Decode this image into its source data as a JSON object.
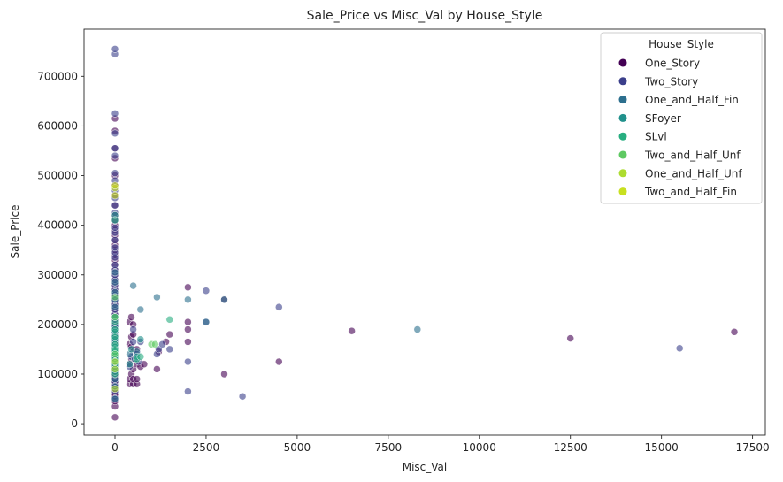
{
  "chart_data": {
    "type": "scatter",
    "title": "Sale_Price vs Misc_Val by House_Style",
    "xlabel": "Misc_Val",
    "ylabel": "Sale_Price",
    "xlim": [
      -850,
      17850
    ],
    "ylim": [
      -23000,
      795000
    ],
    "xticks": [
      0,
      2500,
      5000,
      7500,
      10000,
      12500,
      15000,
      17500
    ],
    "xtick_labels": [
      "0",
      "2500",
      "5000",
      "7500",
      "10000",
      "12500",
      "15000",
      "17500"
    ],
    "yticks": [
      0,
      100000,
      200000,
      300000,
      400000,
      500000,
      600000,
      700000
    ],
    "ytick_labels": [
      "0",
      "100000",
      "200000",
      "300000",
      "400000",
      "500000",
      "600000",
      "700000"
    ],
    "grid": false,
    "legend": {
      "title": "House_Style",
      "position": "top-right",
      "entries": [
        "One_Story",
        "Two_Story",
        "One_and_Half_Fin",
        "SFoyer",
        "SLvl",
        "Two_and_Half_Unf",
        "One_and_Half_Unf",
        "Two_and_Half_Fin"
      ]
    },
    "colors": {
      "One_Story": "#440154",
      "Two_Story": "#3b3f8b",
      "One_and_Half_Fin": "#2c6f8e",
      "SFoyer": "#21918c",
      "SLvl": "#28ae80",
      "Two_and_Half_Unf": "#5ec962",
      "One_and_Half_Unf": "#addc30",
      "Two_and_Half_Fin": "#c8e020"
    },
    "series": [
      {
        "name": "One_Story",
        "x": [
          0,
          0,
          0,
          0,
          0,
          0,
          0,
          0,
          0,
          0,
          0,
          0,
          0,
          0,
          0,
          0,
          0,
          0,
          0,
          0,
          0,
          0,
          0,
          0,
          0,
          0,
          0,
          0,
          0,
          0,
          0,
          0,
          0,
          0,
          0,
          0,
          0,
          0,
          0,
          0,
          0,
          0,
          0,
          0,
          0,
          0,
          0,
          0,
          0,
          0,
          0,
          0,
          0,
          0,
          0,
          0,
          0,
          0,
          0,
          0,
          0,
          0,
          400,
          400,
          400,
          400,
          400,
          450,
          450,
          450,
          450,
          450,
          500,
          500,
          500,
          500,
          500,
          500,
          600,
          600,
          600,
          600,
          700,
          800,
          1150,
          1200,
          1400,
          1500,
          2000,
          2000,
          2000,
          2000,
          3000,
          3000,
          4500,
          6500,
          12500,
          17000
        ],
        "y": [
          13000,
          35000,
          45000,
          55000,
          60000,
          70000,
          75000,
          80000,
          85000,
          90000,
          95000,
          100000,
          105000,
          110000,
          115000,
          120000,
          125000,
          130000,
          135000,
          140000,
          145000,
          150000,
          155000,
          160000,
          165000,
          170000,
          175000,
          180000,
          185000,
          190000,
          195000,
          200000,
          210000,
          220000,
          230000,
          240000,
          250000,
          260000,
          270000,
          280000,
          290000,
          300000,
          310000,
          320000,
          330000,
          340000,
          350000,
          360000,
          370000,
          380000,
          390000,
          400000,
          410000,
          420000,
          440000,
          460000,
          480000,
          500000,
          535000,
          555000,
          590000,
          615000,
          80000,
          90000,
          120000,
          160000,
          205000,
          100000,
          130000,
          155000,
          175000,
          215000,
          80000,
          90000,
          110000,
          145000,
          180000,
          200000,
          80000,
          90000,
          120000,
          150000,
          115000,
          120000,
          110000,
          145000,
          165000,
          180000,
          165000,
          190000,
          205000,
          275000,
          100000,
          250000,
          125000,
          187000,
          172000,
          185000
        ]
      },
      {
        "name": "Two_Story",
        "x": [
          0,
          0,
          0,
          0,
          0,
          0,
          0,
          0,
          0,
          0,
          0,
          0,
          0,
          0,
          0,
          0,
          0,
          0,
          0,
          0,
          0,
          0,
          0,
          0,
          0,
          0,
          0,
          0,
          0,
          0,
          0,
          0,
          0,
          0,
          0,
          0,
          0,
          0,
          0,
          0,
          0,
          0,
          0,
          400,
          450,
          500,
          500,
          600,
          650,
          700,
          1150,
          1200,
          1300,
          1500,
          2000,
          2000,
          2500,
          2500,
          3500,
          4500,
          15500
        ],
        "y": [
          50000,
          65000,
          85000,
          100000,
          120000,
          140000,
          150000,
          160000,
          170000,
          180000,
          190000,
          200000,
          210000,
          220000,
          230000,
          240000,
          250000,
          260000,
          270000,
          280000,
          290000,
          300000,
          310000,
          320000,
          335000,
          345000,
          355000,
          370000,
          385000,
          395000,
          410000,
          425000,
          440000,
          455000,
          470000,
          490000,
          505000,
          540000,
          555000,
          585000,
          625000,
          745000,
          755000,
          115000,
          135000,
          165000,
          190000,
          140000,
          125000,
          165000,
          140000,
          150000,
          160000,
          150000,
          65000,
          125000,
          205000,
          268000,
          55000,
          235000,
          152000
        ]
      },
      {
        "name": "One_and_Half_Fin",
        "x": [
          0,
          0,
          0,
          0,
          0,
          0,
          0,
          0,
          0,
          0,
          0,
          0,
          0,
          0,
          0,
          0,
          0,
          0,
          0,
          400,
          500,
          550,
          600,
          700,
          1150,
          2000,
          2500,
          3000,
          8300
        ],
        "y": [
          50000,
          75000,
          90000,
          105000,
          115000,
          125000,
          135000,
          145000,
          155000,
          165000,
          175000,
          185000,
          195000,
          215000,
          235000,
          250000,
          265000,
          285000,
          305000,
          140000,
          278000,
          130000,
          145000,
          230000,
          255000,
          250000,
          205000,
          250000,
          190000
        ]
      },
      {
        "name": "SFoyer",
        "x": [
          0,
          0,
          0,
          0,
          0,
          0,
          0,
          0,
          0,
          400,
          450,
          600,
          700
        ],
        "y": [
          110000,
          125000,
          135000,
          145000,
          155000,
          170000,
          185000,
          215000,
          420000,
          120000,
          150000,
          135000,
          170000
        ]
      },
      {
        "name": "SLvl",
        "x": [
          0,
          0,
          0,
          0,
          0,
          0,
          0,
          0,
          0,
          0,
          0,
          600,
          700,
          1500
        ],
        "y": [
          100000,
          120000,
          130000,
          140000,
          145000,
          150000,
          160000,
          175000,
          190000,
          205000,
          410000,
          130000,
          135000,
          210000
        ]
      },
      {
        "name": "Two_and_Half_Unf",
        "x": [
          0,
          0,
          0,
          1000,
          1100
        ],
        "y": [
          140000,
          215000,
          255000,
          160000,
          160000
        ]
      },
      {
        "name": "One_and_Half_Unf",
        "x": [
          0,
          0,
          0
        ],
        "y": [
          70000,
          110000,
          125000
        ]
      },
      {
        "name": "Two_and_Half_Fin",
        "x": [
          0,
          0,
          0
        ],
        "y": [
          460000,
          475000,
          480000
        ]
      }
    ]
  }
}
